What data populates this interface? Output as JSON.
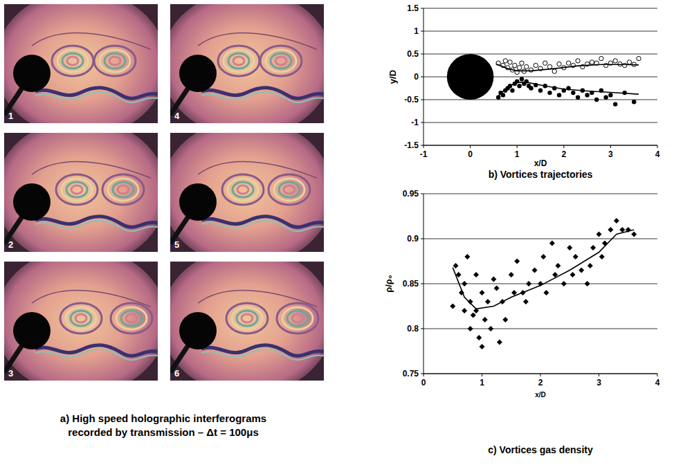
{
  "figure_a": {
    "frames": [
      "1",
      "2",
      "3",
      "4",
      "5",
      "6"
    ],
    "caption": [
      "a) High speed holographic interferograms",
      "recorded by transmission – Δt = 100μs"
    ]
  },
  "chart_data": [
    {
      "type": "scatter",
      "title": "b) Vortices trajectories",
      "x_label": "x/D",
      "y_label": "y/D",
      "xlim": [
        -1,
        4
      ],
      "xticks": [
        -1,
        0,
        1,
        2,
        3,
        4
      ],
      "ylim": [
        -1.5,
        1.5
      ],
      "yticks": [
        -1.5,
        -1,
        -0.5,
        0,
        0.5,
        1,
        1.5
      ],
      "grid": true,
      "body": {
        "x": 0,
        "y": 0,
        "radius": 0.5
      },
      "series": [
        {
          "type": "scatter",
          "marker": "open-circle",
          "color": "#000000",
          "x": [
            0.6,
            0.7,
            0.75,
            0.8,
            0.85,
            0.9,
            0.95,
            1.0,
            1.05,
            1.1,
            1.15,
            1.2,
            1.3,
            1.4,
            1.5,
            1.6,
            1.7,
            1.8,
            1.9,
            2.0,
            2.1,
            2.2,
            2.3,
            2.4,
            2.5,
            2.6,
            2.7,
            2.8,
            2.9,
            3.0,
            3.1,
            3.2,
            3.3,
            3.4,
            3.5,
            3.6
          ],
          "values": [
            0.3,
            0.25,
            0.35,
            0.2,
            0.32,
            0.15,
            0.25,
            0.1,
            0.2,
            0.3,
            0.12,
            0.22,
            0.15,
            0.25,
            0.18,
            0.3,
            0.22,
            0.12,
            0.28,
            0.2,
            0.3,
            0.25,
            0.35,
            0.22,
            0.28,
            0.32,
            0.3,
            0.4,
            0.25,
            0.3,
            0.35,
            0.28,
            0.25,
            0.32,
            0.27,
            0.4
          ]
        },
        {
          "type": "scatter",
          "marker": "filled-circle",
          "color": "#000000",
          "x": [
            0.6,
            0.65,
            0.7,
            0.75,
            0.8,
            0.85,
            0.9,
            0.95,
            1.0,
            1.05,
            1.1,
            1.15,
            1.2,
            1.25,
            1.3,
            1.4,
            1.5,
            1.6,
            1.7,
            1.8,
            1.9,
            2.0,
            2.1,
            2.2,
            2.3,
            2.4,
            2.5,
            2.6,
            2.7,
            2.8,
            2.9,
            3.0,
            3.1,
            3.3,
            3.5
          ],
          "values": [
            -0.45,
            -0.35,
            -0.4,
            -0.3,
            -0.25,
            -0.2,
            -0.3,
            -0.15,
            -0.1,
            -0.2,
            -0.05,
            -0.15,
            -0.1,
            -0.2,
            -0.25,
            -0.18,
            -0.3,
            -0.2,
            -0.35,
            -0.25,
            -0.4,
            -0.3,
            -0.25,
            -0.35,
            -0.45,
            -0.3,
            -0.4,
            -0.35,
            -0.5,
            -0.3,
            -0.45,
            -0.4,
            -0.6,
            -0.35,
            -0.55
          ]
        },
        {
          "type": "line",
          "line_style": "solid",
          "color": "#000000",
          "x": [
            0.55,
            0.8,
            1.0,
            1.3,
            1.8,
            2.3,
            2.8,
            3.3,
            3.6
          ],
          "values": [
            0.28,
            0.18,
            0.13,
            0.13,
            0.18,
            0.24,
            0.27,
            0.27,
            0.26
          ]
        },
        {
          "type": "line",
          "line_style": "solid",
          "color": "#000000",
          "x": [
            0.6,
            0.8,
            1.0,
            1.2,
            1.6,
            2.0,
            2.5,
            3.0,
            3.6
          ],
          "values": [
            -0.42,
            -0.22,
            -0.12,
            -0.12,
            -0.2,
            -0.27,
            -0.31,
            -0.34,
            -0.38
          ]
        }
      ]
    },
    {
      "type": "scatter",
      "title": "c) Vortices gas density",
      "x_label": "x/D",
      "y_label": "ρ/ρ₀",
      "xlim": [
        0,
        4
      ],
      "xticks": [
        0,
        1,
        2,
        3,
        4
      ],
      "ylim": [
        0.75,
        0.95
      ],
      "yticks": [
        0.75,
        0.8,
        0.85,
        0.9,
        0.95
      ],
      "grid": true,
      "series": [
        {
          "type": "scatter",
          "marker": "diamond",
          "color": "#000000",
          "x": [
            0.5,
            0.55,
            0.6,
            0.65,
            0.7,
            0.7,
            0.75,
            0.8,
            0.8,
            0.85,
            0.9,
            0.9,
            0.95,
            1.0,
            1.0,
            1.05,
            1.1,
            1.15,
            1.2,
            1.25,
            1.3,
            1.35,
            1.4,
            1.5,
            1.55,
            1.6,
            1.7,
            1.75,
            1.8,
            1.9,
            2.0,
            2.05,
            2.1,
            2.2,
            2.25,
            2.3,
            2.4,
            2.5,
            2.55,
            2.6,
            2.7,
            2.8,
            2.85,
            2.9,
            3.0,
            3.05,
            3.1,
            3.2,
            3.3,
            3.4,
            3.5,
            3.6
          ],
          "values": [
            0.825,
            0.87,
            0.86,
            0.84,
            0.85,
            0.82,
            0.88,
            0.83,
            0.8,
            0.815,
            0.86,
            0.82,
            0.79,
            0.84,
            0.78,
            0.81,
            0.83,
            0.8,
            0.855,
            0.845,
            0.785,
            0.83,
            0.81,
            0.86,
            0.84,
            0.875,
            0.84,
            0.83,
            0.85,
            0.865,
            0.85,
            0.88,
            0.84,
            0.895,
            0.86,
            0.87,
            0.85,
            0.89,
            0.86,
            0.88,
            0.865,
            0.85,
            0.87,
            0.89,
            0.905,
            0.88,
            0.895,
            0.91,
            0.92,
            0.91,
            0.91,
            0.905
          ]
        },
        {
          "type": "line",
          "line_style": "solid",
          "color": "#000000",
          "x": [
            0.5,
            0.7,
            0.9,
            1.2,
            1.5,
            2.0,
            2.5,
            3.0,
            3.3,
            3.6
          ],
          "values": [
            0.868,
            0.835,
            0.822,
            0.825,
            0.835,
            0.848,
            0.865,
            0.885,
            0.905,
            0.91
          ]
        }
      ]
    }
  ]
}
